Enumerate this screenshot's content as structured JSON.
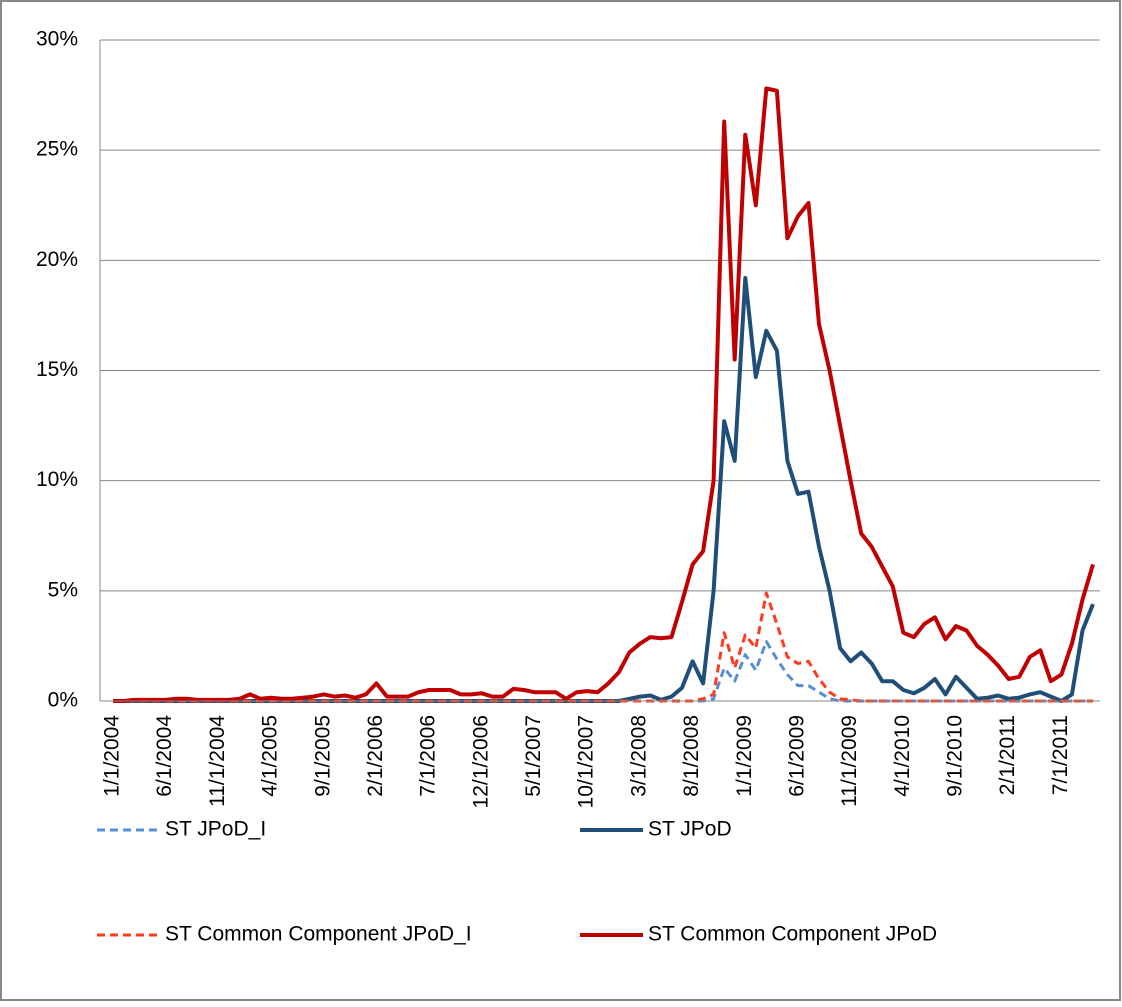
{
  "chart_data": {
    "type": "line",
    "categories": [
      "1/1/2004",
      null,
      null,
      null,
      null,
      "6/1/2004",
      null,
      null,
      null,
      null,
      "11/1/2004",
      null,
      null,
      null,
      null,
      "4/1/2005",
      null,
      null,
      null,
      null,
      "9/1/2005",
      null,
      null,
      null,
      null,
      "2/1/2006",
      null,
      null,
      null,
      null,
      "7/1/2006",
      null,
      null,
      null,
      null,
      "12/1/2006",
      null,
      null,
      null,
      null,
      "5/1/2007",
      null,
      null,
      null,
      null,
      "10/1/2007",
      null,
      null,
      null,
      null,
      "3/1/2008",
      null,
      null,
      null,
      null,
      "8/1/2008",
      null,
      null,
      null,
      null,
      "1/1/2009",
      null,
      null,
      null,
      null,
      "6/1/2009",
      null,
      null,
      null,
      null,
      "11/1/2009",
      null,
      null,
      null,
      null,
      "4/1/2010",
      null,
      null,
      null,
      null,
      "9/1/2010",
      null,
      null,
      null,
      null,
      "2/1/2011",
      null,
      null,
      null,
      null,
      "7/1/2011",
      null,
      null,
      null
    ],
    "series": [
      {
        "name": "ST JPoD_I",
        "color": "#558ed5",
        "dashed": true,
        "values": [
          0,
          0,
          0,
          0,
          0,
          0,
          0,
          0,
          0,
          0,
          0,
          0,
          0,
          0,
          0,
          0,
          0,
          0,
          0,
          0,
          0,
          0,
          0,
          0,
          0,
          0,
          0,
          0,
          0,
          0,
          0,
          0,
          0,
          0,
          0,
          0,
          0,
          0,
          0,
          0,
          0,
          0,
          0,
          0,
          0,
          0,
          0,
          0,
          0,
          0,
          0,
          0,
          0,
          0,
          0,
          0,
          0,
          0.1,
          1.5,
          0.9,
          2.1,
          1.4,
          2.7,
          1.9,
          1.2,
          0.7,
          0.7,
          0.4,
          0.1,
          0,
          0,
          0,
          0,
          0,
          0,
          0,
          0,
          0,
          0,
          0,
          0,
          0,
          0,
          0,
          0,
          0,
          0,
          0,
          0,
          0,
          0,
          0,
          0,
          0
        ]
      },
      {
        "name": "ST JPoD",
        "color": "#1f4e79",
        "dashed": false,
        "values": [
          0,
          0,
          0,
          0,
          0,
          0,
          0,
          0,
          0,
          0,
          0,
          0,
          0,
          0,
          0,
          0,
          0,
          0,
          0,
          0,
          0,
          0,
          0,
          0,
          0,
          0,
          0,
          0,
          0,
          0,
          0,
          0,
          0,
          0,
          0,
          0,
          0,
          0,
          0,
          0,
          0,
          0,
          0,
          0,
          0,
          0,
          0,
          0,
          0,
          0.1,
          0.2,
          0.25,
          0.05,
          0.2,
          0.6,
          1.8,
          0.8,
          5,
          12.7,
          10.9,
          19.2,
          14.7,
          16.8,
          15.9,
          10.9,
          9.4,
          9.5,
          7,
          5,
          2.4,
          1.8,
          2.2,
          1.7,
          0.9,
          0.9,
          0.5,
          0.35,
          0.6,
          1.0,
          0.3,
          1.1,
          0.6,
          0.1,
          0.15,
          0.25,
          0.1,
          0.15,
          0.3,
          0.4,
          0.2,
          0,
          0.3,
          3.2,
          4.4
        ]
      },
      {
        "name": "ST Common Component JPoD_I",
        "color": "#ff3b1f",
        "dashed": true,
        "values": [
          0,
          0,
          0,
          0,
          0,
          0,
          0,
          0,
          0,
          0,
          0,
          0,
          0,
          0,
          0,
          0,
          0,
          0,
          0,
          0,
          0,
          0,
          0,
          0,
          0,
          0,
          0,
          0,
          0,
          0,
          0,
          0,
          0,
          0,
          0,
          0,
          0,
          0,
          0,
          0,
          0,
          0,
          0,
          0,
          0,
          0,
          0,
          0,
          0,
          0,
          0,
          0,
          0,
          0,
          0,
          0,
          0.1,
          0.3,
          3.1,
          1.5,
          3.0,
          2.4,
          4.9,
          3.5,
          2.0,
          1.7,
          1.8,
          1.0,
          0.4,
          0.1,
          0.05,
          0,
          0,
          0,
          0,
          0,
          0,
          0,
          0,
          0,
          0,
          0,
          0,
          0,
          0,
          0,
          0,
          0,
          0,
          0,
          0,
          0,
          0,
          0
        ]
      },
      {
        "name": "ST Common Component JPoD",
        "color": "#c00000",
        "dashed": false,
        "values": [
          0,
          0,
          0.05,
          0.05,
          0.05,
          0.05,
          0.1,
          0.1,
          0.05,
          0.05,
          0.05,
          0.05,
          0.1,
          0.3,
          0.1,
          0.15,
          0.1,
          0.1,
          0.15,
          0.2,
          0.3,
          0.2,
          0.25,
          0.15,
          0.3,
          0.8,
          0.2,
          0.2,
          0.2,
          0.4,
          0.5,
          0.5,
          0.5,
          0.3,
          0.3,
          0.35,
          0.2,
          0.2,
          0.55,
          0.5,
          0.4,
          0.4,
          0.4,
          0.1,
          0.4,
          0.45,
          0.4,
          0.8,
          1.3,
          2.2,
          2.6,
          2.9,
          2.85,
          2.9,
          4.5,
          6.2,
          6.8,
          10,
          26.3,
          15.5,
          25.7,
          22.5,
          27.8,
          27.7,
          21,
          22,
          22.6,
          17.1,
          15,
          12.5,
          10,
          7.6,
          7,
          6.1,
          5.2,
          3.1,
          2.9,
          3.5,
          3.8,
          2.8,
          3.4,
          3.2,
          2.5,
          2.1,
          1.6,
          1.0,
          1.1,
          2.0,
          2.3,
          0.9,
          1.2,
          2.6,
          4.6,
          6.2
        ]
      }
    ],
    "ylim": [
      0,
      30
    ],
    "yticks": [
      {
        "value": 0,
        "label": "0%"
      },
      {
        "value": 5,
        "label": "5%"
      },
      {
        "value": 10,
        "label": "10%"
      },
      {
        "value": 15,
        "label": "15%"
      },
      {
        "value": 20,
        "label": "20%"
      },
      {
        "value": 25,
        "label": "25%"
      },
      {
        "value": 30,
        "label": "30%"
      }
    ],
    "grid": true,
    "legend": "bottom"
  }
}
